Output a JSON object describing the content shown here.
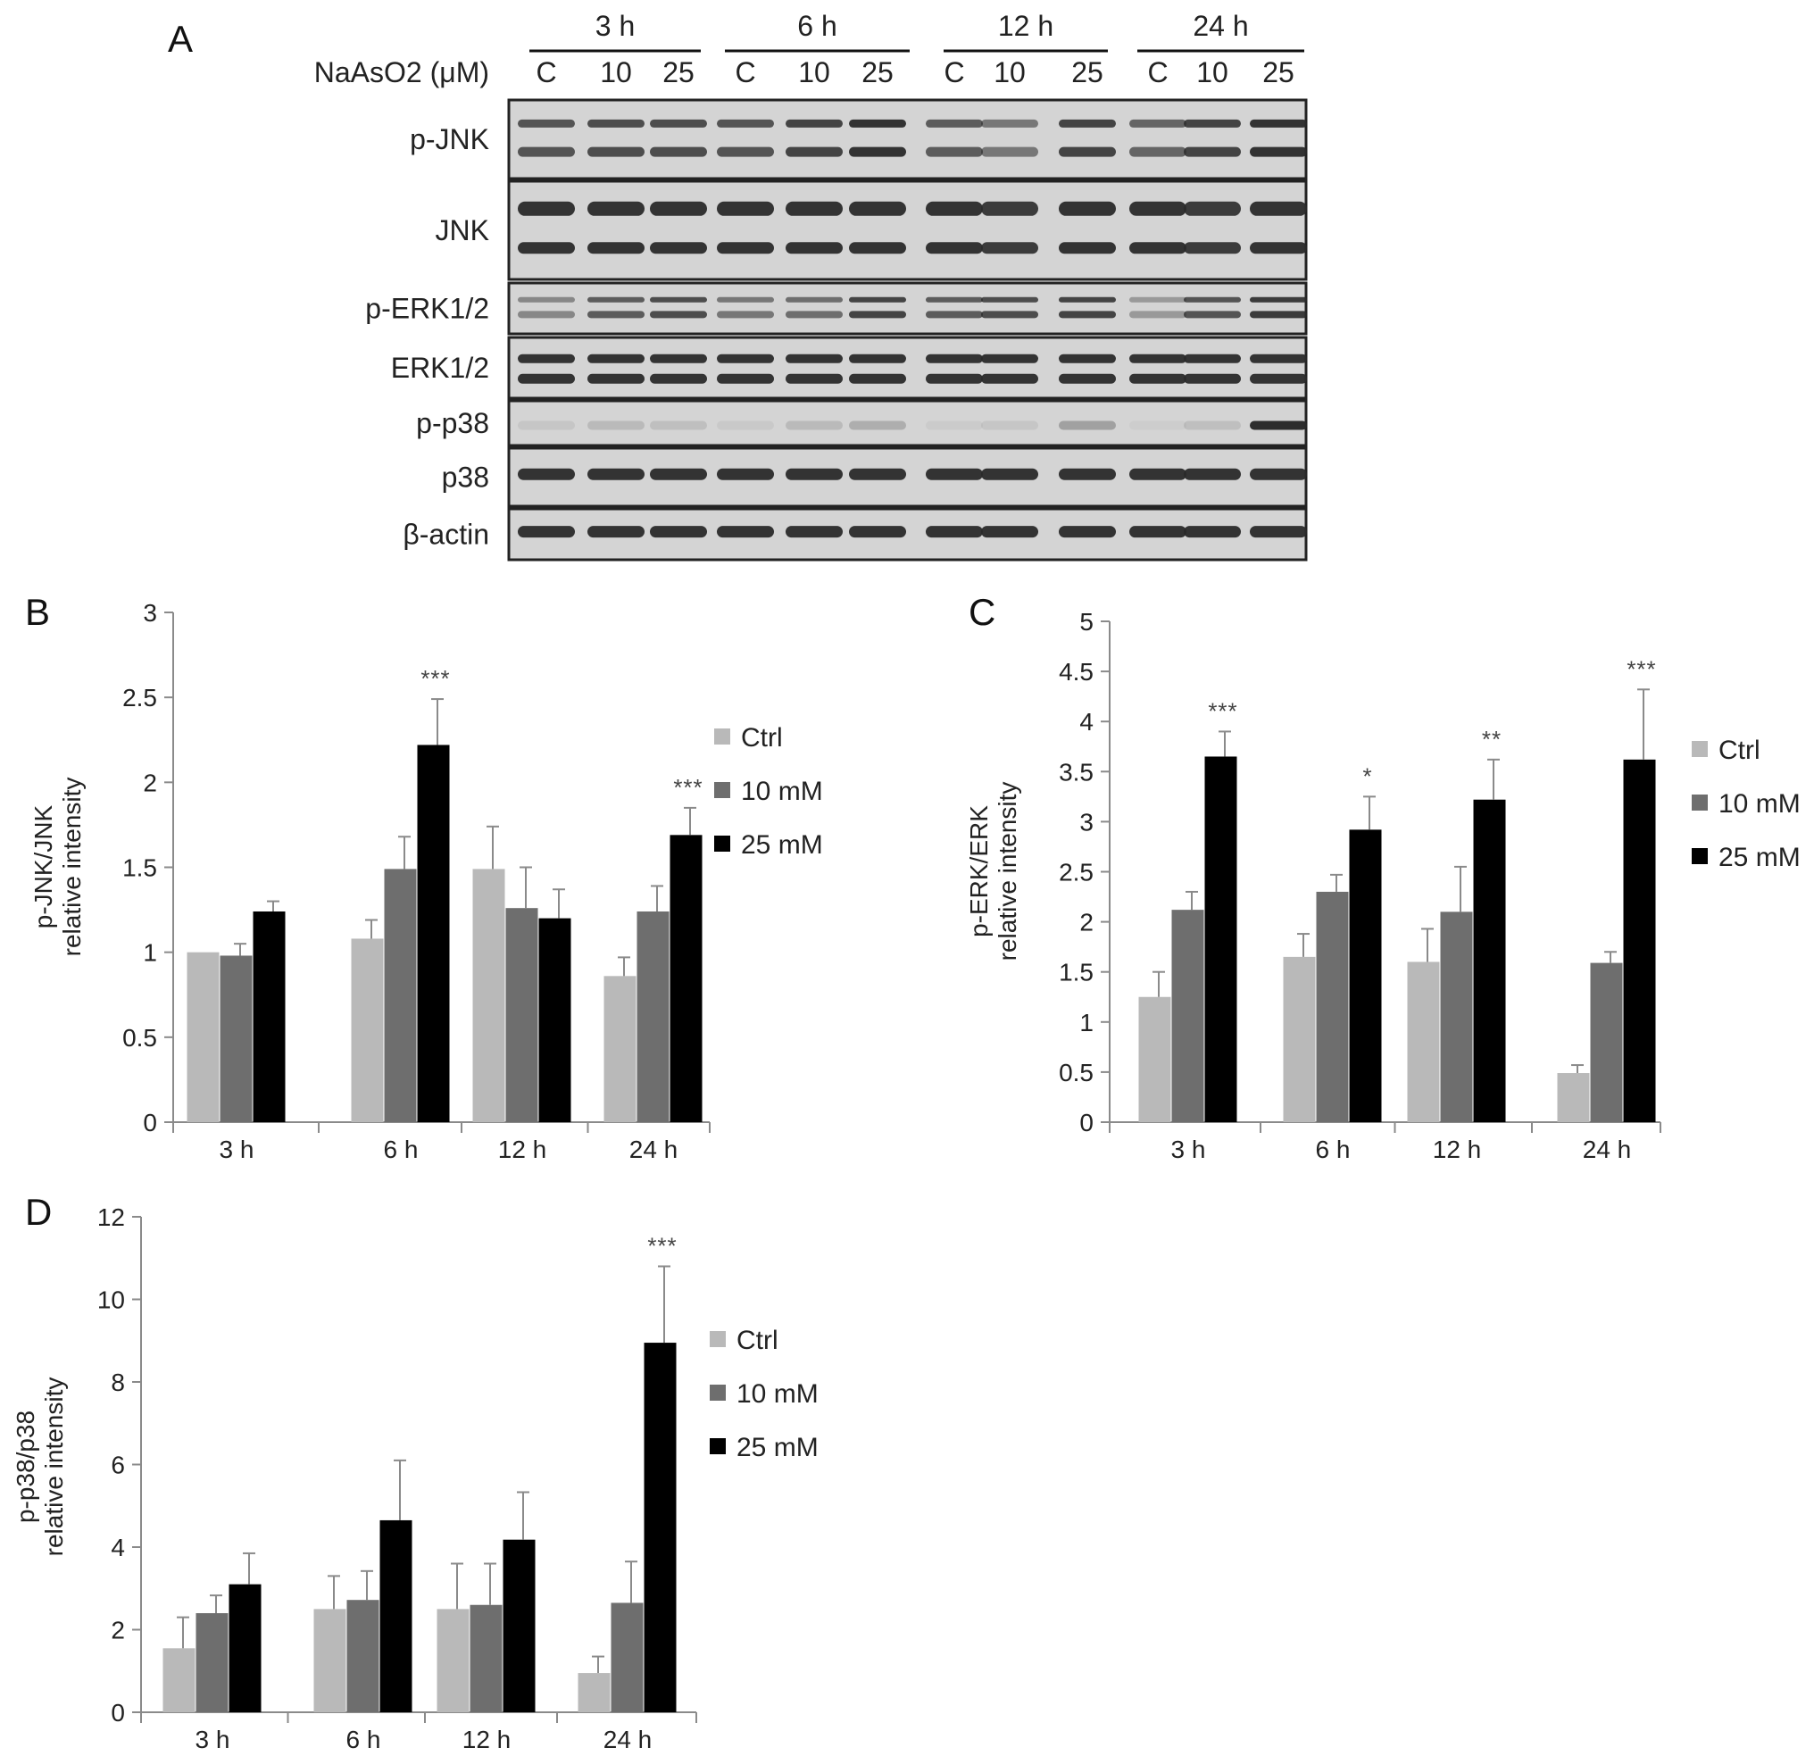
{
  "colors": {
    "ctrl": "#b9b9b9",
    "mid": "#6e6e6e",
    "high": "#000000",
    "axis": "#8a8a8a",
    "blot_bg": "#d4d4d4",
    "band": "#2a2a2a"
  },
  "panel_a": {
    "letter": "A",
    "treatment_label": "NaAsO2 (μM)",
    "timepoints": [
      "3 h",
      "6 h",
      "12 h",
      "24 h"
    ],
    "lanes": [
      "C",
      "10",
      "25",
      "C",
      "10",
      "25",
      "C",
      "10",
      "25",
      "C",
      "10",
      "25"
    ],
    "blots": [
      "p-JNK",
      "JNK",
      "p-ERK1/2",
      "ERK1/2",
      "p-p38",
      "p38",
      "β-actin"
    ]
  },
  "chart_data": [
    {
      "id": "B",
      "type": "bar",
      "ylabel_lines": [
        "p-JNK/JNK",
        "relative intensity"
      ],
      "ylim": [
        0,
        3
      ],
      "yticks": [
        "0",
        "0.5",
        "1",
        "1.5",
        "2",
        "2.5",
        "3"
      ],
      "categories": [
        "3 h",
        "6 h",
        "12 h",
        "24 h"
      ],
      "legend_position": "right",
      "series": [
        {
          "name": "Ctrl",
          "values": [
            1.0,
            1.08,
            1.49,
            0.86
          ],
          "errors": [
            0.0,
            0.11,
            0.25,
            0.11
          ]
        },
        {
          "name": "10 mM",
          "values": [
            0.98,
            1.49,
            1.26,
            1.24
          ],
          "errors": [
            0.07,
            0.19,
            0.24,
            0.15
          ]
        },
        {
          "name": "25 mM",
          "values": [
            1.24,
            2.22,
            1.2,
            1.69
          ],
          "errors": [
            0.06,
            0.27,
            0.17,
            0.16
          ]
        }
      ],
      "annotations": [
        {
          "category": "6 h",
          "series": "25 mM",
          "text": "***"
        },
        {
          "category": "24 h",
          "series": "25 mM",
          "text": "***"
        }
      ]
    },
    {
      "id": "C",
      "type": "bar",
      "ylabel_lines": [
        "p-ERK/ERK",
        "relative intensity"
      ],
      "ylim": [
        0,
        5
      ],
      "yticks": [
        "0",
        "0.5",
        "1",
        "1.5",
        "2",
        "2.5",
        "3",
        "3.5",
        "4",
        "4.5",
        "5"
      ],
      "categories": [
        "3 h",
        "6 h",
        "12 h",
        "24 h"
      ],
      "legend_position": "right",
      "series": [
        {
          "name": "Ctrl",
          "values": [
            1.25,
            1.65,
            1.6,
            0.49
          ],
          "errors": [
            0.25,
            0.23,
            0.33,
            0.08
          ]
        },
        {
          "name": "10 mM",
          "values": [
            2.12,
            2.3,
            2.1,
            1.59
          ],
          "errors": [
            0.18,
            0.17,
            0.45,
            0.11
          ]
        },
        {
          "name": "25 mM",
          "values": [
            3.65,
            2.92,
            3.22,
            3.62
          ],
          "errors": [
            0.25,
            0.33,
            0.4,
            0.7
          ]
        }
      ],
      "annotations": [
        {
          "category": "3 h",
          "series": "25 mM",
          "text": "***"
        },
        {
          "category": "6 h",
          "series": "25 mM",
          "text": "*"
        },
        {
          "category": "12 h",
          "series": "25 mM",
          "text": "**"
        },
        {
          "category": "24 h",
          "series": "25 mM",
          "text": "***"
        }
      ]
    },
    {
      "id": "D",
      "type": "bar",
      "ylabel_lines": [
        "p-p38/p38",
        "relative intensity"
      ],
      "ylim": [
        0,
        12
      ],
      "yticks": [
        "0",
        "2",
        "4",
        "6",
        "8",
        "10",
        "12"
      ],
      "categories": [
        "3 h",
        "6 h",
        "12 h",
        "24 h"
      ],
      "legend_position": "right",
      "series": [
        {
          "name": "Ctrl",
          "values": [
            1.55,
            2.5,
            2.5,
            0.95
          ],
          "errors": [
            0.75,
            0.8,
            1.1,
            0.4
          ]
        },
        {
          "name": "10 mM",
          "values": [
            2.4,
            2.72,
            2.6,
            2.65
          ],
          "errors": [
            0.43,
            0.7,
            1.0,
            1.0
          ]
        },
        {
          "name": "25 mM",
          "values": [
            3.1,
            4.65,
            4.18,
            8.95
          ],
          "errors": [
            0.75,
            1.45,
            1.15,
            1.85
          ]
        }
      ],
      "annotations": [
        {
          "category": "24 h",
          "series": "25 mM",
          "text": "***"
        }
      ]
    }
  ]
}
